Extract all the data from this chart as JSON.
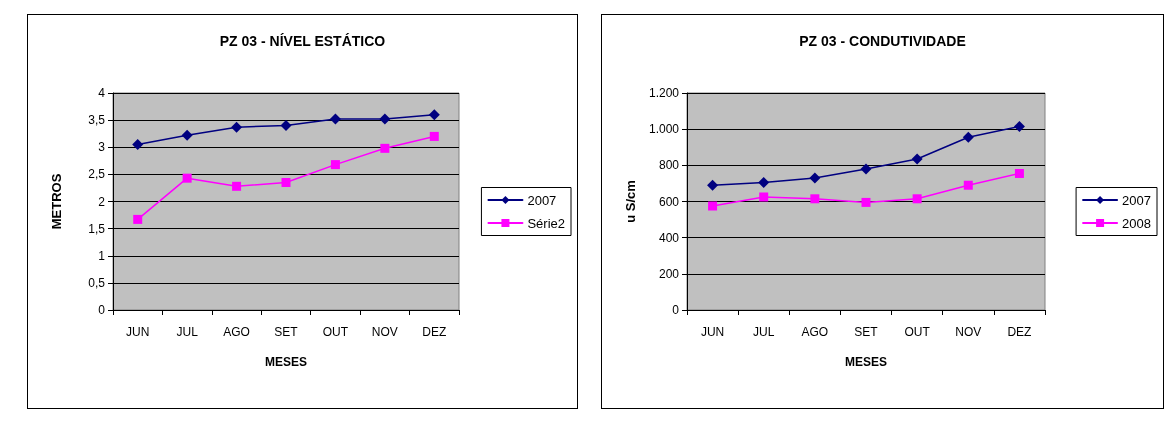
{
  "chart_data": [
    {
      "type": "line",
      "title": "PZ 03 - NÍVEL ESTÁTICO",
      "xlabel": "MESES",
      "ylabel": "METROS",
      "categories": [
        "JUN",
        "JUL",
        "AGO",
        "SET",
        "OUT",
        "NOV",
        "DEZ"
      ],
      "series": [
        {
          "name": "2007",
          "color": "#000080",
          "marker": "diamond",
          "values": [
            3.05,
            3.22,
            3.37,
            3.4,
            3.52,
            3.52,
            3.6
          ]
        },
        {
          "name": "Série2",
          "color": "#ff00ff",
          "marker": "square",
          "values": [
            1.67,
            2.43,
            2.28,
            2.35,
            2.68,
            2.98,
            3.2
          ]
        }
      ],
      "ylim": [
        0,
        4
      ],
      "yticks": [
        0,
        {
          "value": 0.5,
          "label": "0,5"
        },
        1,
        {
          "value": 1.5,
          "label": "1,5"
        },
        2,
        {
          "value": 2.5,
          "label": "2,5"
        },
        3,
        {
          "value": 3.5,
          "label": "3,5"
        },
        4
      ],
      "grid": "y",
      "legend": "right"
    },
    {
      "type": "line",
      "title": "PZ 03 - CONDUTIVIDADE",
      "xlabel": "MESES",
      "ylabel": "u S/cm",
      "categories": [
        "JUN",
        "JUL",
        "AGO",
        "SET",
        "OUT",
        "NOV",
        "DEZ"
      ],
      "series": [
        {
          "name": "2007",
          "color": "#000080",
          "marker": "diamond",
          "values": [
            690,
            705,
            730,
            780,
            835,
            955,
            1015
          ]
        },
        {
          "name": "2008",
          "color": "#ff00ff",
          "marker": "square",
          "values": [
            575,
            625,
            615,
            595,
            615,
            690,
            755
          ]
        }
      ],
      "ylim": [
        0,
        1200
      ],
      "yticks": [
        0,
        200,
        400,
        600,
        800,
        {
          "value": 1000,
          "label": "1.000"
        },
        {
          "value": 1200,
          "label": "1.200"
        }
      ],
      "grid": "y",
      "legend": "right"
    }
  ]
}
